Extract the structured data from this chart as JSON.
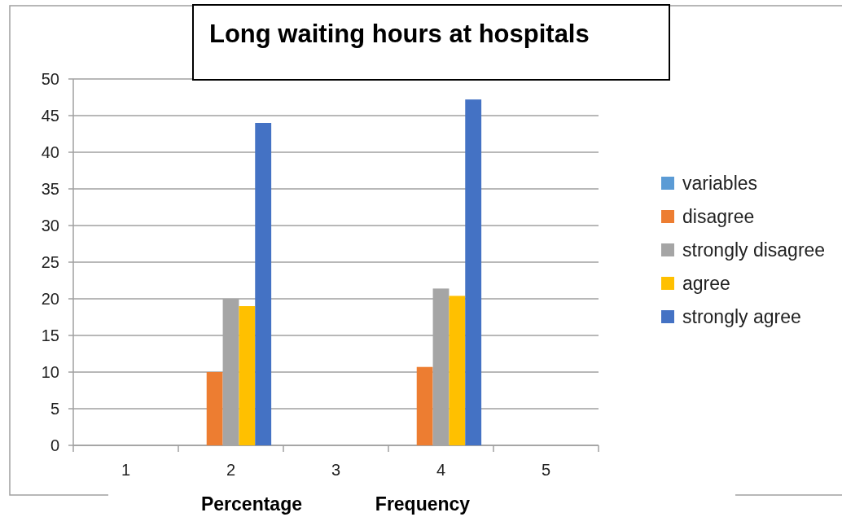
{
  "chart_data": {
    "type": "bar",
    "title": "Long waiting hours at hospitals",
    "categories": [
      "1",
      "2",
      "3",
      "4",
      "5"
    ],
    "series": [
      {
        "name": "variables",
        "color": "#5b9bd5",
        "values": [
          null,
          null,
          null,
          null,
          null
        ]
      },
      {
        "name": "disagree",
        "color": "#ed7d31",
        "values": [
          null,
          10,
          null,
          10.7,
          null
        ]
      },
      {
        "name": "strongly disagree",
        "color": "#a5a5a5",
        "values": [
          null,
          20,
          null,
          21.4,
          null
        ]
      },
      {
        "name": "agree",
        "color": "#ffc000",
        "values": [
          null,
          19,
          null,
          20.4,
          null
        ]
      },
      {
        "name": "strongly agree",
        "color": "#4472c4",
        "values": [
          null,
          44,
          null,
          47.2,
          null
        ]
      }
    ],
    "ylim": [
      0,
      50
    ],
    "yticks": [
      0,
      5,
      10,
      15,
      20,
      25,
      30,
      35,
      40,
      45,
      50
    ],
    "grid": "y",
    "legend": "right",
    "annotations": [
      "Percentage",
      "Frequency"
    ]
  }
}
